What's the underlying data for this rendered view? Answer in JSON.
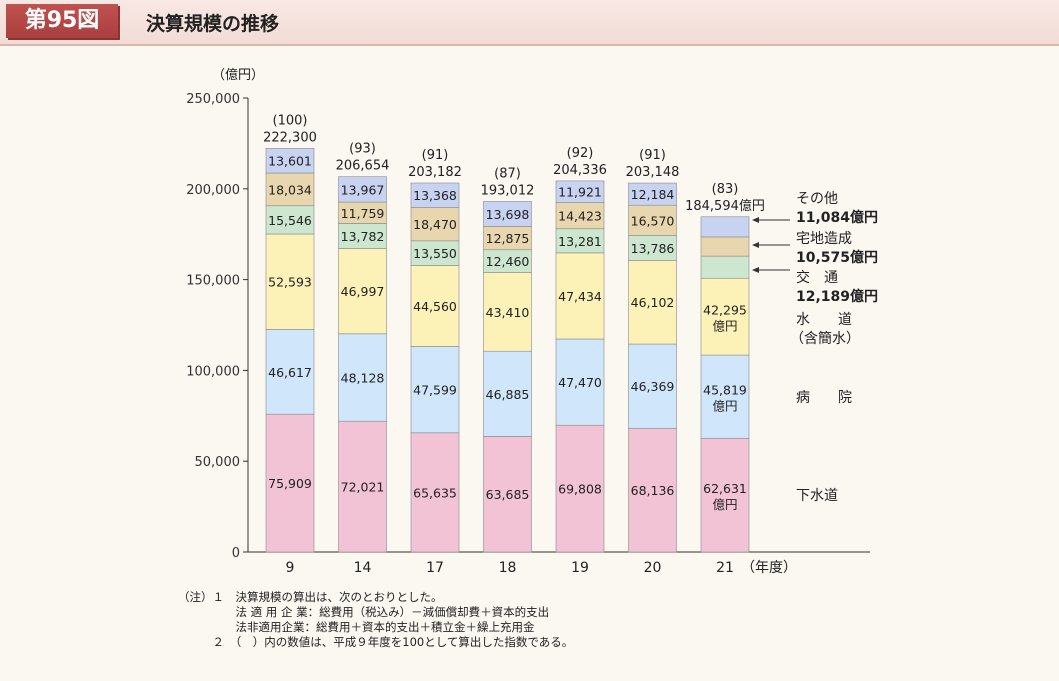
{
  "header": {
    "figure_number": "第95図",
    "title": "決算規模の推移"
  },
  "chart_data": {
    "type": "bar",
    "stacked": true,
    "y_unit_label": "（億円）",
    "ylim": [
      0,
      250000
    ],
    "yticks": [
      "0",
      "50,000",
      "100,000",
      "150,000",
      "200,000",
      "250,000"
    ],
    "categories": [
      "9",
      "14",
      "17",
      "18",
      "19",
      "20",
      "21"
    ],
    "x_suffix": "（年度）",
    "series": [
      {
        "name": "下水道",
        "color": "#f2c3d4",
        "values": [
          75909,
          72021,
          65635,
          63685,
          69808,
          68136,
          62631
        ],
        "labels": [
          "75,909",
          "72,021",
          "65,635",
          "63,685",
          "69,808",
          "68,136",
          "62,631"
        ]
      },
      {
        "name": "病院",
        "color": "#cfe6fb",
        "values": [
          46617,
          48128,
          47599,
          46885,
          47470,
          46369,
          45819
        ],
        "labels": [
          "46,617",
          "48,128",
          "47,599",
          "46,885",
          "47,470",
          "46,369",
          "45,819"
        ]
      },
      {
        "name": "水道（含簡水）",
        "color": "#fcf2b8",
        "values": [
          52593,
          46997,
          44560,
          43410,
          47434,
          46102,
          42295
        ],
        "labels": [
          "52,593",
          "46,997",
          "44,560",
          "43,410",
          "47,434",
          "46,102",
          "42,295"
        ]
      },
      {
        "name": "交通",
        "color": "#cde6cf",
        "values": [
          15546,
          13782,
          13550,
          12460,
          13281,
          13786,
          12189
        ],
        "labels": [
          "15,546",
          "13,782",
          "13,550",
          "12,460",
          "13,281",
          "13,786",
          ""
        ]
      },
      {
        "name": "宅地造成",
        "color": "#e7d6ae",
        "values": [
          18034,
          11759,
          18470,
          12875,
          14423,
          16570,
          10575
        ],
        "labels": [
          "18,034",
          "11,759",
          "18,470",
          "12,875",
          "14,423",
          "16,570",
          ""
        ]
      },
      {
        "name": "その他",
        "color": "#c7d3f1",
        "values": [
          13601,
          13967,
          13368,
          13698,
          11921,
          12184,
          11084
        ],
        "labels": [
          "13,601",
          "13,967",
          "13,368",
          "13,698",
          "11,921",
          "12,184",
          ""
        ]
      }
    ],
    "unit_suffix": "億円",
    "last_bar_unit_series": [
      0,
      1,
      2
    ],
    "totals": [
      "222,300",
      "206,654",
      "203,182",
      "193,012",
      "204,336",
      "203,148",
      "184,594億円"
    ],
    "total_values": [
      222300,
      206654,
      203182,
      193012,
      204336,
      203148,
      184594
    ],
    "indices": [
      "(100)",
      "(93)",
      "(91)",
      "(87)",
      "(92)",
      "(91)",
      "(83)"
    ],
    "right_labels": {
      "sonota": {
        "name": "その他",
        "value": "11,084億円"
      },
      "takuchi": {
        "name": "宅地造成",
        "value": "10,575億円"
      },
      "kotsu": {
        "name": "交　通",
        "value": "12,189億円"
      },
      "suido": {
        "name": "水　　道",
        "sub": "（含簡水）"
      },
      "byoin": {
        "name": "病　　院"
      },
      "gesui": {
        "name": "下水道"
      }
    }
  },
  "notes": [
    "（注）１　決算規模の算出は、次のとおりとした。",
    "　　　　　法 適 用 企 業：総費用（税込み）－減価償却費＋資本的支出",
    "　　　　　法非適用企業：総費用＋資本的支出＋積立金＋繰上充用金",
    "　　　２　（　）内の数値は、平成９年度を100として算出した指数である。"
  ]
}
